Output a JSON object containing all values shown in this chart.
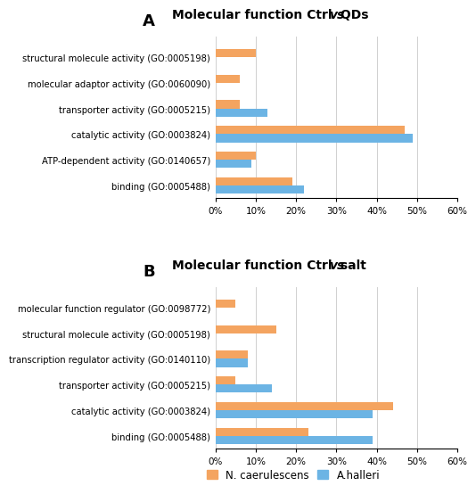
{
  "panel_a": {
    "title_parts": [
      "Molecular function Ctrl ",
      "vs",
      " QDs"
    ],
    "categories": [
      "structural molecule activity (GO:0005198)",
      "molecular adaptor activity (GO:0060090)",
      "transporter activity (GO:0005215)",
      "catalytic activity (GO:0003824)",
      "ATP-dependent activity (GO:0140657)",
      "binding (GO:0005488)"
    ],
    "orange_values": [
      10,
      6,
      6,
      47,
      10,
      19
    ],
    "blue_values": [
      0,
      0,
      13,
      49,
      9,
      22
    ]
  },
  "panel_b": {
    "title_parts": [
      "Molecular function Ctrl ",
      "vs",
      " salt"
    ],
    "categories": [
      "molecular function regulator (GO:0098772)",
      "structural molecule activity (GO:0005198)",
      "transcription regulator activity (GO:0140110)",
      "transporter activity (GO:0005215)",
      "catalytic activity (GO:0003824)",
      "binding (GO:0005488)"
    ],
    "orange_values": [
      5,
      15,
      8,
      5,
      44,
      23
    ],
    "blue_values": [
      0,
      0,
      8,
      14,
      39,
      39
    ]
  },
  "orange_color": "#F4A460",
  "blue_color": "#6CB4E4",
  "legend_labels": [
    "N. caerulescens",
    "A.halleri"
  ],
  "xlim": [
    0,
    60
  ],
  "xtick_values": [
    0,
    10,
    20,
    30,
    40,
    50,
    60
  ],
  "xtick_labels": [
    "0%",
    "10%",
    "20%",
    "30%",
    "40%",
    "50%",
    "60%"
  ],
  "label_a": "A",
  "label_b": "B",
  "title_fontsize": 10,
  "tick_fontsize": 7.5,
  "category_fontsize": 7.2,
  "bar_height": 0.32
}
